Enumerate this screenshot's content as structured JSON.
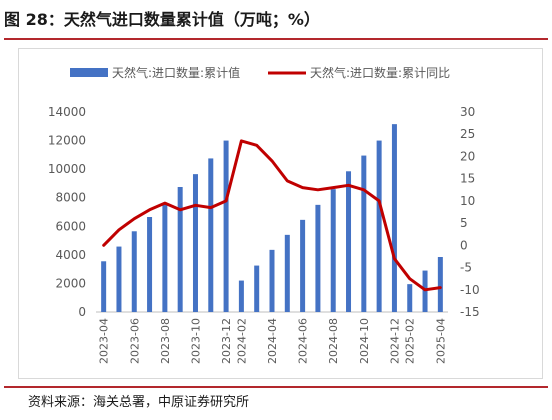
{
  "title": "图 28：天然气进口数量累计值（万吨；%）",
  "source": "资料来源：海关总署，中原证券研究所",
  "colors": {
    "bar": "#4472c4",
    "line": "#c00000",
    "rule": "#b3282d"
  },
  "chart_data": {
    "type": "bar",
    "categories": [
      "2023-04",
      "2023-05",
      "2023-06",
      "2023-07",
      "2023-08",
      "2023-09",
      "2023-10",
      "2023-11",
      "2023-12",
      "2024-02",
      "2024-03",
      "2024-04",
      "2024-05",
      "2024-06",
      "2024-07",
      "2024-08",
      "2024-09",
      "2024-10",
      "2024-11",
      "2024-12",
      "2025-02",
      "2025-03",
      "2025-04"
    ],
    "tick_labels": [
      "2023-04",
      "2023-06",
      "2023-08",
      "2023-10",
      "2023-12",
      "2024-02",
      "2024-04",
      "2024-06",
      "2024-08",
      "2024-10",
      "2024-12",
      "2025-02",
      "2025-04"
    ],
    "series": [
      {
        "name": "天然气:进口数量:累计值",
        "type": "bar",
        "axis": "left",
        "values": [
          3550,
          4580,
          5650,
          6650,
          7650,
          8750,
          9650,
          10750,
          12000,
          2200,
          3250,
          4350,
          5400,
          6450,
          7500,
          8600,
          9850,
          10950,
          12000,
          13150,
          1950,
          2900,
          3850
        ]
      },
      {
        "name": "天然气:进口数量:累计同比",
        "type": "line",
        "axis": "right",
        "values": [
          0,
          3.5,
          6,
          8,
          9.5,
          8,
          9,
          8.5,
          10,
          23.5,
          22.5,
          19,
          14.5,
          13,
          12.5,
          13,
          13.5,
          12.5,
          10,
          -3,
          -7.5,
          -10,
          -9.5
        ]
      }
    ],
    "y_left": {
      "min": 0,
      "max": 14000,
      "ticks": [
        0,
        2000,
        4000,
        6000,
        8000,
        10000,
        12000,
        14000
      ]
    },
    "y_right": {
      "min": -15,
      "max": 30,
      "ticks": [
        -15,
        -10,
        -5,
        0,
        5,
        10,
        15,
        20,
        25,
        30
      ]
    },
    "legend_position": "top",
    "grid": false
  }
}
